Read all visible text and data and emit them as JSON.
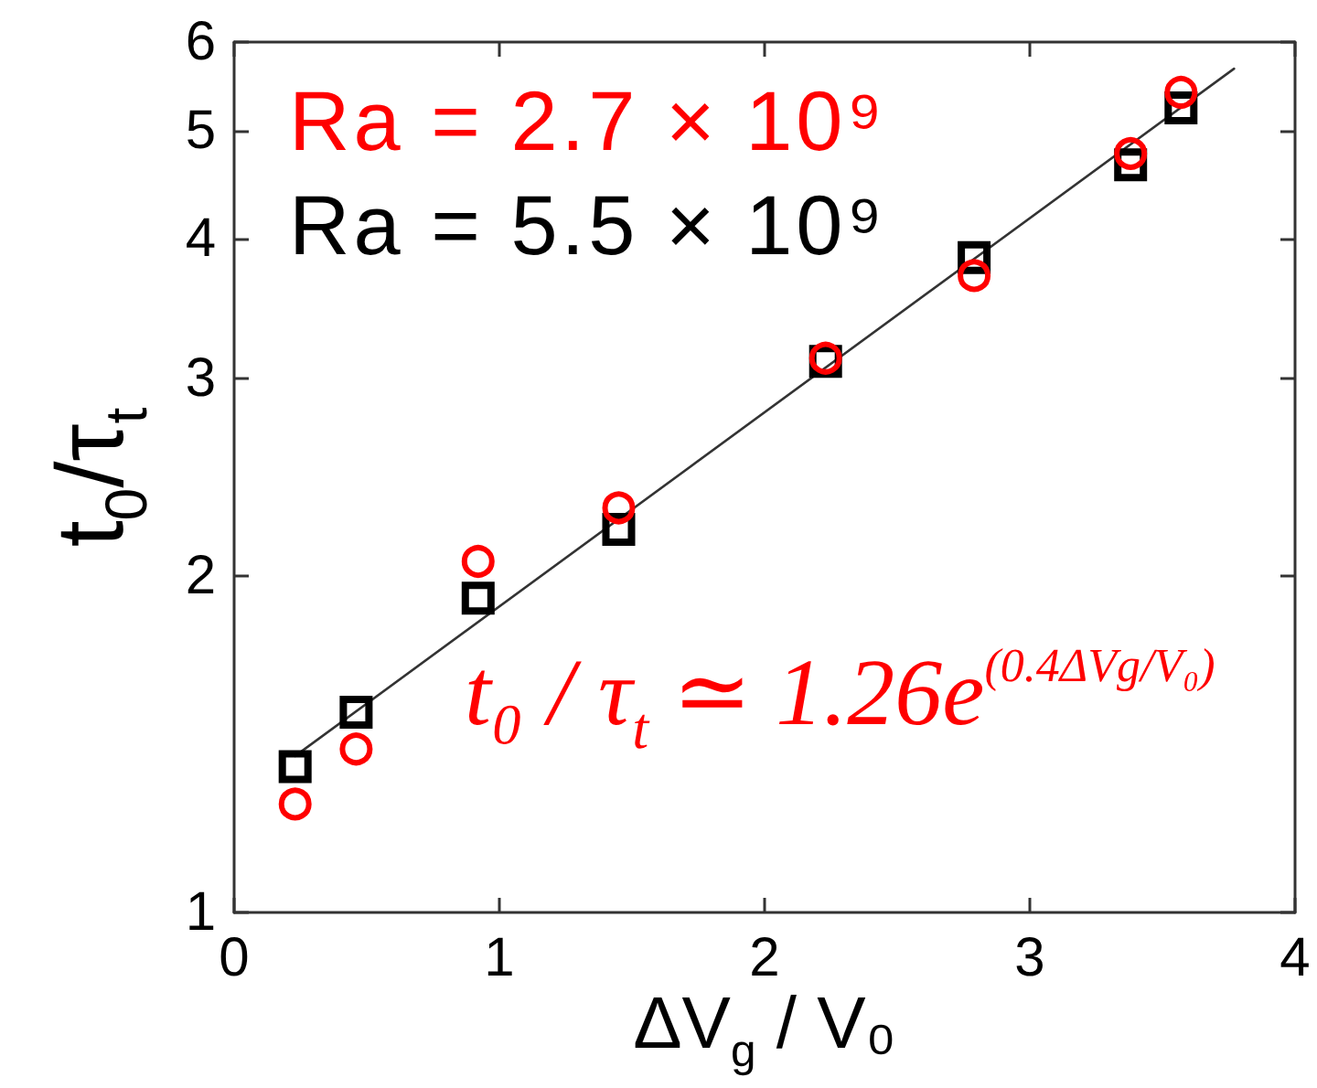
{
  "chart_data": {
    "type": "scatter",
    "xlabel": "ΔV$_{g}$ / V₀",
    "ylabel": "t$_{0}$/τ$_{t}$",
    "x": [
      0.23,
      0.46,
      0.92,
      1.45,
      2.23,
      2.79,
      3.38,
      3.57
    ],
    "series": [
      {
        "name": "Ra = 2.7 × 10⁹",
        "color": "#ff0000",
        "marker": "circle",
        "values": [
          1.25,
          1.4,
          2.06,
          2.3,
          3.13,
          3.71,
          4.77,
          5.41
        ]
      },
      {
        "name": "Ra = 5.5 × 10⁹",
        "color": "#000000",
        "marker": "square",
        "values": [
          1.35,
          1.51,
          1.91,
          2.2,
          3.11,
          3.85,
          4.66,
          5.24
        ]
      },
      {
        "type": "line",
        "x": [
          0.23,
          3.77
        ],
        "values": [
          1.38,
          5.68
        ],
        "color": "#333333",
        "marker": "none"
      }
    ],
    "annotations": [
      "t₀ / τ$_{t}$ ≃ 1.26e$^{(0.4ΔVg/V₀)}$"
    ],
    "xlim": [
      0,
      4
    ],
    "xticks": [
      0,
      1,
      2,
      3,
      4
    ],
    "ylim": [
      1,
      6
    ],
    "yticks": [
      1,
      2,
      3,
      4,
      5,
      6
    ],
    "log": "y",
    "grid": false,
    "legend": "top left"
  }
}
